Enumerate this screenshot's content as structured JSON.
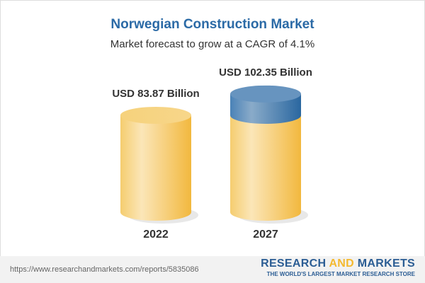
{
  "title": "Norwegian Construction Market",
  "subtitle": "Market forecast to grow at a CAGR of 4.1%",
  "chart_data": {
    "type": "bar",
    "categories": [
      "2022",
      "2027"
    ],
    "values": [
      83.87,
      102.35
    ],
    "data_labels": [
      "USD 83.87 Billion",
      "USD 102.35 Billion"
    ],
    "colors": {
      "base": "#f4c158",
      "growth": "#3f79ae"
    }
  },
  "footer": {
    "url": "https://www.researchandmarkets.com/reports/5835086",
    "logo_a": "RESEARCH ",
    "logo_b": "AND",
    "logo_c": " MARKETS",
    "tagline": "THE WORLD'S LARGEST MARKET RESEARCH STORE"
  }
}
